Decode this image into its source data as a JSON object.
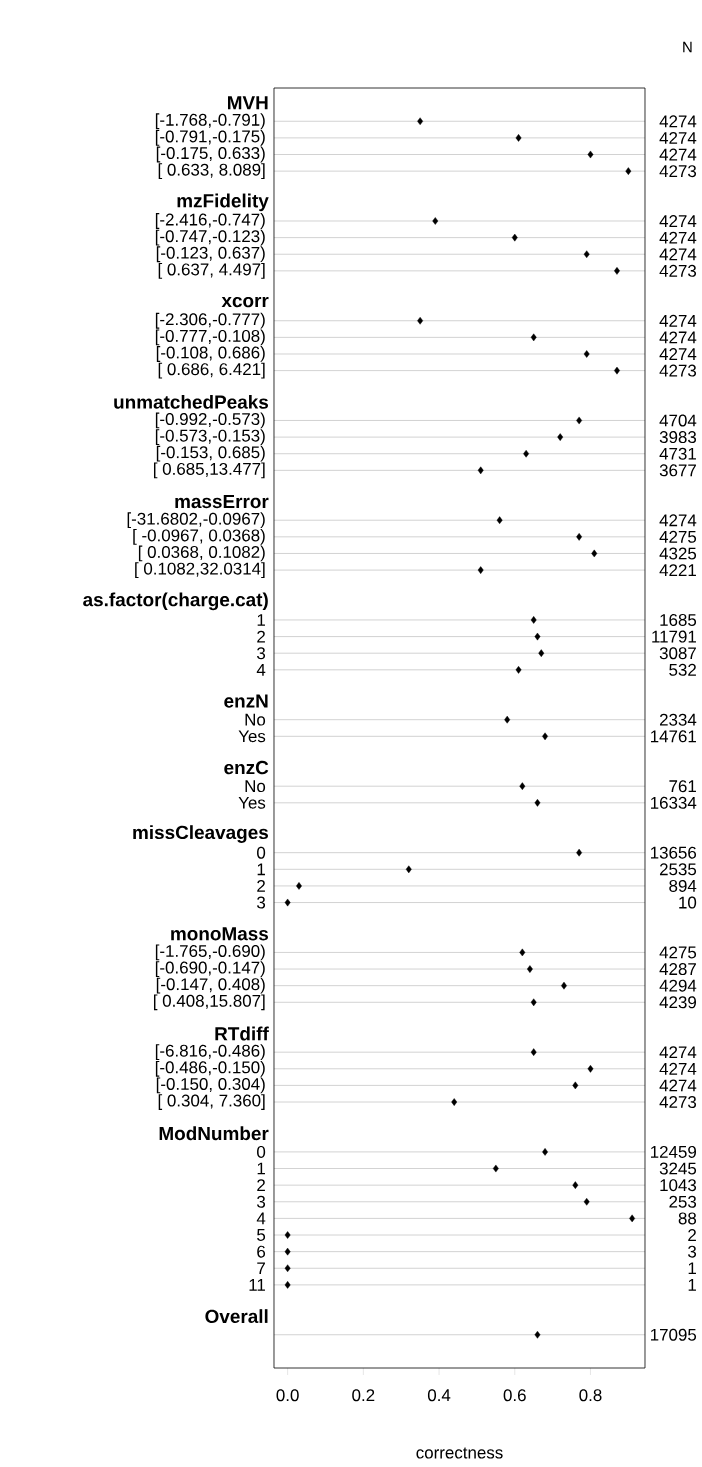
{
  "chart_data": {
    "type": "scatter",
    "orientation": "horizontal",
    "xlabel": "correctness",
    "y2label": "N",
    "categories": [
      "MVH",
      "[-1.768,-0.791)",
      "[-0.791,-0.175)",
      "[-0.175, 0.633)",
      "[ 0.633, 8.089]",
      "mzFidelity",
      "[-2.416,-0.747)",
      "[-0.747,-0.123)",
      "[-0.123, 0.637)",
      "[ 0.637, 4.497]",
      "xcorr",
      "[-2.306,-0.777)",
      "[-0.777,-0.108)",
      "[-0.108, 0.686)",
      "[ 0.686, 6.421]",
      "unmatchedPeaks",
      "[-0.992,-0.573)",
      "[-0.573,-0.153)",
      "[-0.153, 0.685)",
      "[ 0.685,13.477]",
      "massError",
      "[-31.6802,-0.0967)",
      "[ -0.0967, 0.0368)",
      "[  0.0368, 0.1082)",
      "[  0.1082,32.0314]",
      "as.factor(charge.cat)",
      "1",
      "2",
      "3",
      "4",
      "enzN",
      "No",
      "Yes",
      "enzC",
      "No",
      "Yes",
      "missCleavages",
      "0",
      "1",
      "2",
      "3",
      "monoMass",
      "[-1.765,-0.690)",
      "[-0.690,-0.147)",
      "[-0.147, 0.408)",
      "[ 0.408,15.807]",
      "RTdiff",
      "[-6.816,-0.486)",
      "[-0.486,-0.150)",
      "[-0.150, 0.304)",
      "[ 0.304, 7.360]",
      "ModNumber",
      "0",
      "1",
      "2",
      "3",
      "4",
      "5",
      "6",
      "7",
      "11",
      "Overall",
      null
    ],
    "values": [
      null,
      0.35,
      0.61,
      0.8,
      0.9,
      null,
      0.39,
      0.6,
      0.79,
      0.87,
      null,
      0.35,
      0.65,
      0.79,
      0.87,
      null,
      0.77,
      0.72,
      0.63,
      0.51,
      null,
      0.56,
      0.77,
      0.81,
      0.51,
      null,
      0.65,
      0.66,
      0.67,
      0.61,
      null,
      0.58,
      0.68,
      null,
      0.62,
      0.66,
      null,
      0.77,
      0.32,
      0.03,
      0.0,
      null,
      0.62,
      0.64,
      0.73,
      0.65,
      null,
      0.65,
      0.8,
      0.76,
      0.44,
      null,
      0.68,
      0.55,
      0.76,
      0.79,
      0.91,
      0.0,
      0.0,
      0.0,
      0.0,
      null,
      0.66
    ],
    "y2_categories": [
      null,
      "4274",
      "4274",
      "4274",
      "4273",
      null,
      "4274",
      "4274",
      "4274",
      "4273",
      null,
      "4274",
      "4274",
      "4274",
      "4273",
      null,
      "4704",
      "3983",
      "4731",
      "3677",
      null,
      "4274",
      "4275",
      "4325",
      "4221",
      null,
      "1685",
      "11791",
      "3087",
      "532",
      null,
      "2334",
      "14761",
      null,
      "761",
      "16334",
      null,
      "13656",
      "2535",
      "894",
      "10",
      null,
      "4275",
      "4287",
      "4294",
      "4239",
      null,
      "4274",
      "4274",
      "4274",
      "4273",
      null,
      "12459",
      "3245",
      "1043",
      "253",
      "88",
      "2",
      "3",
      "1",
      "1",
      null,
      "17095"
    ],
    "color": "#000000",
    "marker": "diamond",
    "grid": "y",
    "xlim": [
      -0.036,
      0.944
    ],
    "xticks": [
      {
        "value": 0,
        "label": "0.0"
      },
      {
        "value": 0.2,
        "label": "0.2"
      },
      {
        "value": 0.4,
        "label": "0.4"
      },
      {
        "value": 0.6,
        "label": "0.6"
      },
      {
        "value": 0.8,
        "label": "0.8"
      }
    ]
  }
}
